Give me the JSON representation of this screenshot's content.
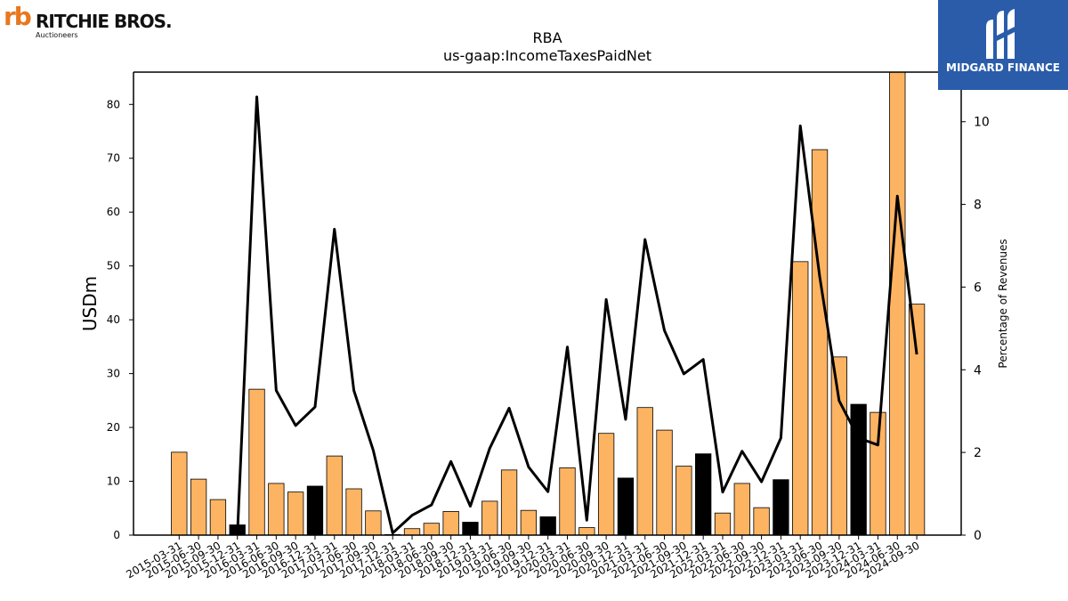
{
  "logos": {
    "left_mark": "rb",
    "left_name": "RITCHIE BROS.",
    "left_sub": "Auctioneers",
    "right_name": "MIDGARD FINANCE",
    "right_bg_color": "#2a5caa"
  },
  "chart_data": {
    "type": "bar",
    "title": "RBA",
    "subtitle": "us-gaap:IncomeTaxesPaidNet",
    "ylabel": "USDm",
    "y2label": "Percentage of Revenues",
    "ylim": [
      0,
      86
    ],
    "y2lim": [
      0,
      11.2
    ],
    "yticks": [
      0,
      10,
      20,
      30,
      40,
      50,
      60,
      70,
      80
    ],
    "y2ticks": [
      0,
      2,
      4,
      6,
      8,
      10
    ],
    "grid": false,
    "bar_color": "#fdb462",
    "highlight_color": "#000000",
    "line_color": "#000000",
    "categories": [
      "2015-03-31",
      "2015-06-30",
      "2015-09-30",
      "2015-12-31",
      "2016-03-31",
      "2016-06-30",
      "2016-09-30",
      "2016-12-31",
      "2017-03-31",
      "2017-06-30",
      "2017-09-30",
      "2017-12-31",
      "2018-03-31",
      "2018-06-30",
      "2018-09-30",
      "2018-12-31",
      "2019-03-31",
      "2019-06-30",
      "2019-09-30",
      "2019-12-31",
      "2020-03-31",
      "2020-06-30",
      "2020-09-30",
      "2020-12-31",
      "2021-03-31",
      "2021-06-30",
      "2021-09-30",
      "2021-12-31",
      "2022-03-31",
      "2022-06-30",
      "2022-09-30",
      "2022-12-31",
      "2023-03-31",
      "2023-06-30",
      "2023-09-30",
      "2023-12-31",
      "2024-03-31",
      "2024-06-30",
      "2024-09-30"
    ],
    "series": [
      {
        "kind": "bar",
        "axis": "left",
        "values": [
          15.4,
          10.4,
          6.6,
          1.9,
          27.1,
          9.6,
          8.0,
          9.1,
          14.7,
          8.6,
          4.5,
          0.1,
          1.2,
          2.2,
          4.4,
          2.4,
          6.3,
          12.1,
          4.6,
          3.4,
          12.5,
          1.4,
          18.9,
          10.6,
          23.7,
          19.5,
          12.8,
          15.1,
          4.1,
          9.6,
          5.1,
          10.3,
          50.8,
          71.6,
          33.1,
          24.3,
          22.8,
          86.0,
          42.9
        ],
        "highlight": [
          false,
          false,
          false,
          true,
          false,
          false,
          false,
          true,
          false,
          false,
          false,
          true,
          false,
          false,
          false,
          true,
          false,
          false,
          false,
          true,
          false,
          false,
          false,
          true,
          false,
          false,
          false,
          true,
          false,
          false,
          false,
          true,
          false,
          false,
          false,
          true,
          false,
          false,
          false
        ]
      },
      {
        "kind": "line",
        "axis": "right",
        "values": [
          null,
          null,
          null,
          0.0,
          10.6,
          3.5,
          2.65,
          3.1,
          7.4,
          3.5,
          2.05,
          0.05,
          0.48,
          0.73,
          1.78,
          0.7,
          2.1,
          3.07,
          1.65,
          1.05,
          4.55,
          0.36,
          5.7,
          2.8,
          7.15,
          4.95,
          3.9,
          4.25,
          1.04,
          2.03,
          1.29,
          2.35,
          9.9,
          6.25,
          3.25,
          2.35,
          2.18,
          8.2,
          4.37
        ]
      }
    ]
  }
}
